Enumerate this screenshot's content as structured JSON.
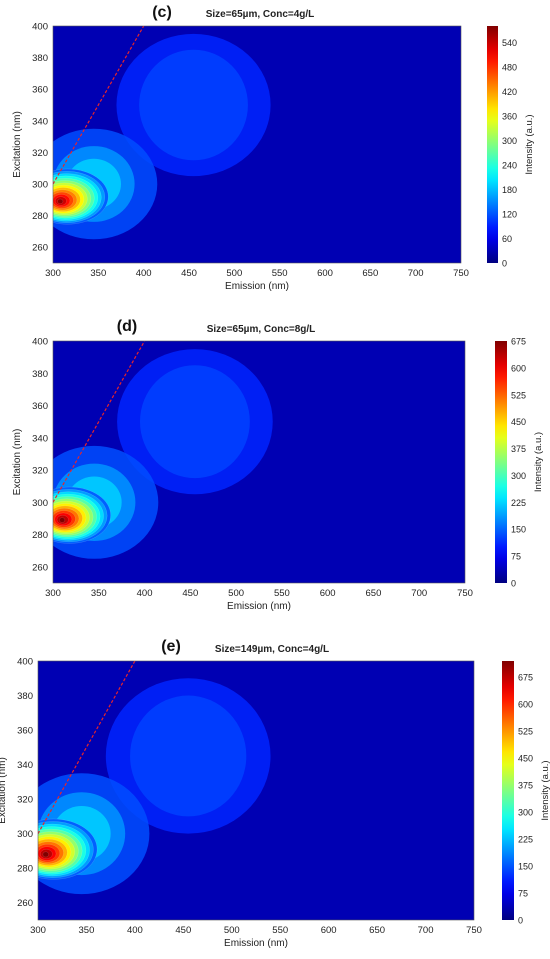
{
  "chart_data": [
    {
      "type": "heatmap",
      "panel_label": "(c)",
      "title": "Size=65µm, Conc=4g/L",
      "xlabel": "Emission (nm)",
      "ylabel": "Excitation (nm)",
      "colorbar_label": "Intensity (a.u.)",
      "xlim": [
        300,
        750
      ],
      "ylim": [
        250,
        400
      ],
      "xticks": [
        300,
        350,
        400,
        450,
        500,
        550,
        600,
        650,
        700,
        750
      ],
      "yticks": [
        260,
        280,
        300,
        320,
        340,
        360,
        380,
        400
      ],
      "colorbar_range": [
        0,
        580
      ],
      "colorbar_ticks": [
        0,
        60,
        120,
        180,
        240,
        300,
        360,
        420,
        480,
        540
      ],
      "colormap": "jet",
      "rayleigh_line": {
        "x": [
          300,
          400
        ],
        "y": [
          300,
          400
        ],
        "color": "#e8242a",
        "style": "dashed"
      },
      "peaks": [
        {
          "emission": 308,
          "excitation": 289,
          "intensity": 570
        },
        {
          "emission": 345,
          "excitation": 300,
          "intensity": 160
        },
        {
          "emission": 455,
          "excitation": 350,
          "intensity": 95
        }
      ]
    },
    {
      "type": "heatmap",
      "panel_label": "(d)",
      "title": "Size=65µm, Conc=8g/L",
      "xlabel": "Emission (nm)",
      "ylabel": "Excitation (nm)",
      "colorbar_label": "Intensity (a.u.)",
      "xlim": [
        300,
        750
      ],
      "ylim": [
        250,
        400
      ],
      "xticks": [
        300,
        350,
        400,
        450,
        500,
        550,
        600,
        650,
        700,
        750
      ],
      "yticks": [
        260,
        280,
        300,
        320,
        340,
        360,
        380,
        400
      ],
      "colorbar_range": [
        0,
        675
      ],
      "colorbar_ticks": [
        0,
        75,
        150,
        225,
        300,
        375,
        450,
        525,
        600,
        675
      ],
      "colormap": "jet",
      "rayleigh_line": {
        "x": [
          300,
          400
        ],
        "y": [
          300,
          400
        ],
        "color": "#e8242a",
        "style": "dashed"
      },
      "peaks": [
        {
          "emission": 310,
          "excitation": 289,
          "intensity": 675
        },
        {
          "emission": 345,
          "excitation": 300,
          "intensity": 200
        },
        {
          "emission": 455,
          "excitation": 350,
          "intensity": 110
        }
      ]
    },
    {
      "type": "heatmap",
      "panel_label": "(e)",
      "title": "Size=149µm, Conc=4g/L",
      "xlabel": "Emission (nm)",
      "ylabel": "Excitation (nm)",
      "colorbar_label": "Intensity (a.u.)",
      "xlim": [
        300,
        750
      ],
      "ylim": [
        250,
        400
      ],
      "xticks": [
        300,
        350,
        400,
        450,
        500,
        550,
        600,
        650,
        700,
        750
      ],
      "yticks": [
        260,
        280,
        300,
        320,
        340,
        360,
        380,
        400
      ],
      "colorbar_range": [
        0,
        720
      ],
      "colorbar_ticks": [
        0,
        75,
        150,
        225,
        300,
        375,
        450,
        525,
        600,
        675
      ],
      "colormap": "jet",
      "rayleigh_line": {
        "x": [
          300,
          400
        ],
        "y": [
          300,
          400
        ],
        "color": "#e8242a",
        "style": "dashed"
      },
      "peaks": [
        {
          "emission": 308,
          "excitation": 288,
          "intensity": 720
        },
        {
          "emission": 345,
          "excitation": 300,
          "intensity": 210
        },
        {
          "emission": 455,
          "excitation": 345,
          "intensity": 110
        }
      ]
    }
  ]
}
